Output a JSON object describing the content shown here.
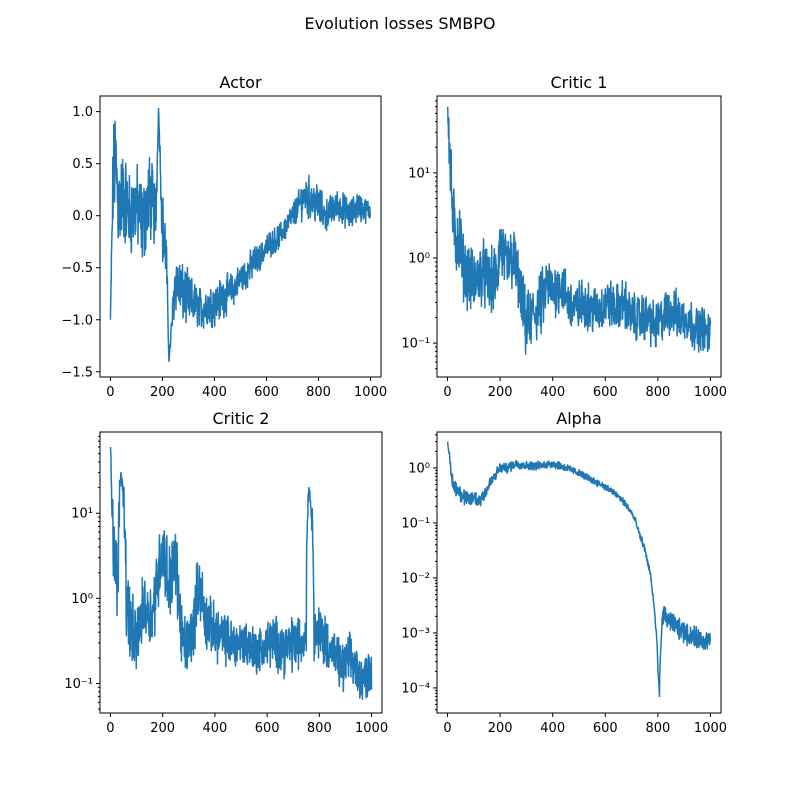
{
  "figure": {
    "title": "Evolution losses SMBPO"
  },
  "chart_data": [
    {
      "type": "line",
      "title": "Actor",
      "yscale": "linear",
      "xlim": [
        -40,
        1040
      ],
      "ylim": [
        -1.55,
        1.15
      ],
      "xticks": [
        0,
        200,
        400,
        600,
        800,
        1000
      ],
      "yticks": [
        -1.5,
        -1.0,
        -0.5,
        0.0,
        0.5,
        1.0
      ],
      "ytick_labels": [
        "−1.5",
        "−1.0",
        "−0.5",
        "0.0",
        "0.5",
        "1.0"
      ],
      "color": "#1f77b4",
      "series": [
        {
          "x": [
            0,
            10,
            20,
            30,
            50,
            75,
            100,
            125,
            150,
            175,
            185,
            200,
            215,
            225,
            250,
            275,
            300,
            325,
            350,
            375,
            400,
            425,
            450,
            475,
            500,
            525,
            550,
            575,
            600,
            625,
            650,
            675,
            700,
            725,
            750,
            775,
            800,
            825,
            850,
            875,
            900,
            925,
            950,
            975,
            1000
          ],
          "y": [
            -1.0,
            0.3,
            0.6,
            0.1,
            0.2,
            0.0,
            0.1,
            -0.1,
            0.2,
            0.0,
            1.03,
            -0.1,
            -0.4,
            -1.4,
            -0.6,
            -0.75,
            -0.8,
            -0.85,
            -0.9,
            -0.85,
            -0.85,
            -0.8,
            -0.75,
            -0.7,
            -0.6,
            -0.55,
            -0.45,
            -0.4,
            -0.3,
            -0.25,
            -0.2,
            -0.1,
            0.0,
            0.1,
            0.2,
            0.15,
            0.1,
            0.0,
            0.05,
            0.1,
            0.05,
            0.0,
            0.1,
            0.05,
            0.05
          ],
          "amp": [
            0,
            0.5,
            0.5,
            0.45,
            0.45,
            0.4,
            0.4,
            0.4,
            0.4,
            0.35,
            0,
            0.35,
            0.3,
            0,
            0.3,
            0.28,
            0.25,
            0.2,
            0.2,
            0.2,
            0.2,
            0.2,
            0.18,
            0.15,
            0.15,
            0.15,
            0.15,
            0.12,
            0.12,
            0.12,
            0.12,
            0.12,
            0.12,
            0.15,
            0.2,
            0.2,
            0.2,
            0.15,
            0.15,
            0.15,
            0.15,
            0.15,
            0.15,
            0.12,
            0.1
          ]
        }
      ]
    },
    {
      "type": "line",
      "title": "Critic 1",
      "yscale": "log",
      "xlim": [
        -40,
        1040
      ],
      "ylim": [
        0.04,
        80
      ],
      "xticks": [
        0,
        200,
        400,
        600,
        800,
        1000
      ],
      "yticks": [
        0.1,
        1,
        10
      ],
      "ytick_labels": [
        "10⁻¹",
        "10⁰",
        "10¹"
      ],
      "color": "#1f77b4",
      "series": [
        {
          "x": [
            0,
            5,
            10,
            20,
            30,
            40,
            60,
            80,
            100,
            130,
            160,
            190,
            200,
            220,
            250,
            265,
            280,
            300,
            320,
            340,
            360,
            380,
            400,
            430,
            460,
            490,
            520,
            550,
            580,
            610,
            640,
            670,
            700,
            730,
            760,
            790,
            820,
            850,
            880,
            910,
            940,
            970,
            1000
          ],
          "y": [
            60,
            30,
            10,
            3,
            1.5,
            2,
            0.8,
            0.6,
            0.5,
            0.7,
            0.5,
            0.6,
            1.5,
            0.8,
            1.0,
            0.6,
            0.3,
            0.15,
            0.2,
            0.25,
            0.3,
            0.5,
            0.4,
            0.5,
            0.3,
            0.25,
            0.3,
            0.25,
            0.25,
            0.3,
            0.25,
            0.3,
            0.2,
            0.2,
            0.2,
            0.15,
            0.2,
            0.25,
            0.2,
            0.2,
            0.15,
            0.15,
            0.12
          ],
          "amp": [
            0,
            0.25,
            0.3,
            0.35,
            0.35,
            0.35,
            0.3,
            0.3,
            0.3,
            0.3,
            0.3,
            0.3,
            0.3,
            0.3,
            0.3,
            0.3,
            0.3,
            0.3,
            0.3,
            0.3,
            0.3,
            0.25,
            0.25,
            0.25,
            0.25,
            0.25,
            0.22,
            0.22,
            0.22,
            0.22,
            0.22,
            0.22,
            0.22,
            0.22,
            0.22,
            0.22,
            0.22,
            0.22,
            0.22,
            0.22,
            0.2,
            0.2,
            0.2
          ]
        }
      ]
    },
    {
      "type": "line",
      "title": "Critic 2",
      "yscale": "log",
      "xlim": [
        -40,
        1040
      ],
      "ylim": [
        0.045,
        90
      ],
      "xticks": [
        0,
        200,
        400,
        600,
        800,
        1000
      ],
      "yticks": [
        0.1,
        1,
        10
      ],
      "ytick_labels": [
        "10⁻¹",
        "10⁰",
        "10¹"
      ],
      "color": "#1f77b4",
      "series": [
        {
          "x": [
            0,
            5,
            10,
            20,
            30,
            40,
            60,
            80,
            100,
            130,
            160,
            180,
            200,
            220,
            250,
            265,
            280,
            300,
            320,
            340,
            360,
            380,
            400,
            430,
            460,
            490,
            520,
            550,
            580,
            610,
            640,
            670,
            700,
            730,
            750,
            760,
            780,
            800,
            830,
            860,
            890,
            920,
            950,
            980,
            1000
          ],
          "y": [
            60,
            20,
            5,
            2,
            1.5,
            30,
            1.0,
            0.4,
            0.3,
            0.8,
            0.6,
            1.5,
            4,
            1.5,
            2.5,
            0.6,
            0.25,
            0.3,
            0.5,
            1.5,
            0.6,
            0.5,
            0.4,
            0.35,
            0.3,
            0.3,
            0.3,
            0.25,
            0.25,
            0.3,
            0.3,
            0.25,
            0.3,
            0.3,
            0.4,
            20,
            0.4,
            0.4,
            0.3,
            0.2,
            0.15,
            0.2,
            0.12,
            0.12,
            0.15
          ],
          "amp": [
            0,
            0.3,
            0.35,
            0.35,
            0.35,
            0,
            0.35,
            0.35,
            0.3,
            0.3,
            0.3,
            0.35,
            0.35,
            0.35,
            0.35,
            0.3,
            0.3,
            0.3,
            0.3,
            0.3,
            0.3,
            0.25,
            0.25,
            0.25,
            0.22,
            0.22,
            0.22,
            0.22,
            0.22,
            0.22,
            0.25,
            0.25,
            0.25,
            0.25,
            0.25,
            0,
            0.25,
            0.25,
            0.25,
            0.22,
            0.22,
            0.22,
            0.22,
            0.2,
            0.2
          ]
        }
      ]
    },
    {
      "type": "line",
      "title": "Alpha",
      "yscale": "log",
      "xlim": [
        -40,
        1040
      ],
      "ylim": [
        3.5e-05,
        4.5
      ],
      "xticks": [
        0,
        200,
        400,
        600,
        800,
        1000
      ],
      "yticks": [
        0.0001,
        0.001,
        0.01,
        0.1,
        1
      ],
      "ytick_labels": [
        "10⁻⁴",
        "10⁻³",
        "10⁻²",
        "10⁻¹",
        "10⁰"
      ],
      "color": "#1f77b4",
      "series": [
        {
          "x": [
            0,
            10,
            20,
            40,
            60,
            80,
            100,
            120,
            150,
            180,
            200,
            230,
            260,
            300,
            350,
            400,
            450,
            500,
            550,
            600,
            650,
            700,
            730,
            760,
            780,
            790,
            800,
            806,
            812,
            818,
            825,
            850,
            900,
            950,
            1000
          ],
          "y": [
            3,
            1.0,
            0.5,
            0.4,
            0.3,
            0.25,
            0.3,
            0.25,
            0.4,
            0.7,
            1.0,
            1.0,
            1.2,
            1.1,
            1.1,
            1.2,
            1.0,
            0.8,
            0.6,
            0.45,
            0.3,
            0.15,
            0.06,
            0.02,
            0.005,
            0.0015,
            0.0002,
            7e-05,
            0.0006,
            0.002,
            0.002,
            0.0015,
            0.001,
            0.0008,
            0.0007
          ],
          "amp": [
            0,
            0.12,
            0.12,
            0.12,
            0.12,
            0.12,
            0.12,
            0.12,
            0.1,
            0.08,
            0.07,
            0.07,
            0.07,
            0.06,
            0.06,
            0.06,
            0.06,
            0.05,
            0.05,
            0.05,
            0.05,
            0.05,
            0.05,
            0.05,
            0.05,
            0.05,
            0,
            0,
            0,
            0.12,
            0.15,
            0.15,
            0.15,
            0.15,
            0.15
          ]
        }
      ]
    }
  ]
}
